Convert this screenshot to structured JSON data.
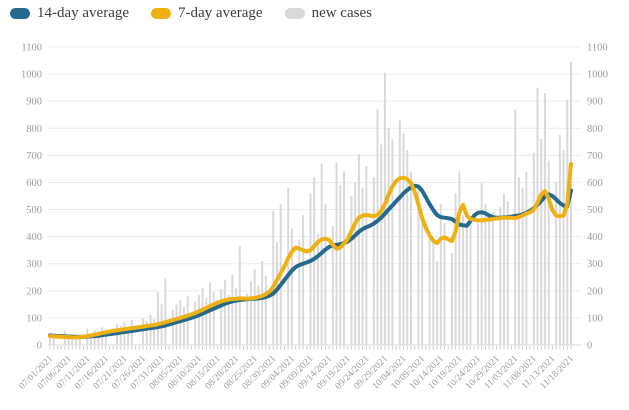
{
  "legend": {
    "items": [
      {
        "name": "avg14",
        "label": "14-day average",
        "color": "#26698e"
      },
      {
        "name": "avg7",
        "label": "7-day average",
        "color": "#eeb111"
      },
      {
        "name": "new_cases",
        "label": "new cases",
        "color": "#d9d9d9"
      }
    ]
  },
  "colors": {
    "bar": "#d9d9d9",
    "line_14day": "#26698e",
    "line_7day": "#eeb111",
    "gridline": "#ececec",
    "baseline": "#d8d8d8",
    "axis_text": "#9c9c9c",
    "day_tick": "#cccccc"
  },
  "chart_data": {
    "type": "bar+line combo, dual y-axis",
    "title": "",
    "xlabel": "",
    "ylabel": "",
    "ylim": [
      0,
      1100
    ],
    "y_ticks": [
      0,
      100,
      200,
      300,
      400,
      500,
      600,
      700,
      800,
      900,
      1000,
      1100
    ],
    "grid": "horizontal-only",
    "legend_position": "top-left",
    "dual_y_axis": true,
    "n_points": 141,
    "x_tick_every": 5,
    "x_tick_labels": [
      "07/01/2021",
      "07/06/2021",
      "07/11/2021",
      "07/16/2021",
      "07/21/2021",
      "07/26/2021",
      "07/31/2021",
      "08/05/2021",
      "08/10/2021",
      "08/15/2021",
      "08/20/2021",
      "08/25/2021",
      "08/30/2021",
      "09/04/2021",
      "09/09/2021",
      "09/14/2021",
      "09/19/2021",
      "09/24/2021",
      "09/29/2021",
      "10/04/2021",
      "10/09/2021",
      "10/14/2021",
      "10/19/2021",
      "10/24/2021",
      "10/29/2021",
      "11/03/2021",
      "11/08/2021",
      "11/13/2021",
      "11/18/2021"
    ],
    "series": [
      {
        "name": "new cases",
        "type": "bar",
        "color": "#d9d9d9",
        "values": [
          45,
          38,
          0,
          0,
          52,
          40,
          35,
          30,
          28,
          0,
          60,
          42,
          55,
          48,
          65,
          58,
          0,
          0,
          78,
          70,
          85,
          62,
          92,
          0,
          0,
          98,
          88,
          112,
          95,
          195,
          150,
          245,
          0,
          130,
          150,
          165,
          140,
          180,
          0,
          160,
          185,
          210,
          175,
          230,
          195,
          0,
          205,
          240,
          185,
          260,
          210,
          365,
          0,
          190,
          235,
          280,
          220,
          310,
          255,
          0,
          495,
          380,
          520,
          0,
          580,
          430,
          0,
          390,
          480,
          0,
          560,
          620,
          410,
          670,
          520,
          0,
          440,
          675,
          590,
          640,
          0,
          550,
          600,
          705,
          580,
          660,
          0,
          620,
          870,
          740,
          1005,
          800,
          760,
          0,
          830,
          780,
          720,
          640,
          0,
          580,
          470,
          0,
          420,
          380,
          310,
          520,
          450,
          0,
          340,
          560,
          640,
          480,
          440,
          470,
          0,
          450,
          600,
          520,
          470,
          490,
          0,
          510,
          560,
          530,
          0,
          870,
          620,
          580,
          640,
          0,
          710,
          950,
          760,
          930,
          680,
          0,
          600,
          775,
          720,
          905,
          1045
        ]
      },
      {
        "name": "14-day average",
        "type": "line",
        "color": "#26698e",
        "values": [
          35,
          34,
          33,
          33,
          32,
          31,
          31,
          30,
          30,
          30,
          31,
          32,
          33,
          34,
          36,
          38,
          40,
          42,
          44,
          46,
          48,
          50,
          52,
          54,
          56,
          58,
          60,
          62,
          64,
          66,
          69,
          72,
          76,
          80,
          84,
          88,
          92,
          96,
          100,
          105,
          110,
          116,
          122,
          128,
          134,
          140,
          146,
          152,
          157,
          161,
          164,
          166,
          168,
          169,
          170,
          171,
          172,
          174,
          177,
          182,
          190,
          205,
          222,
          240,
          258,
          275,
          288,
          295,
          300,
          305,
          310,
          318,
          328,
          340,
          352,
          362,
          368,
          370,
          372,
          376,
          382,
          392,
          405,
          418,
          428,
          435,
          440,
          448,
          458,
          470,
          485,
          500,
          515,
          530,
          545,
          560,
          572,
          582,
          588,
          585,
          570,
          545,
          520,
          498,
          480,
          472,
          470,
          468,
          465,
          455,
          445,
          442,
          440,
          458,
          478,
          488,
          490,
          486,
          478,
          472,
          470,
          470,
          471,
          472,
          474,
          476,
          478,
          482,
          488,
          495,
          505,
          518,
          532,
          548,
          556,
          550,
          538,
          524,
          515,
          512,
          570
        ]
      },
      {
        "name": "7-day average",
        "type": "line",
        "color": "#eeb111",
        "values": [
          33,
          32,
          31,
          30,
          30,
          29,
          28,
          28,
          29,
          31,
          33,
          35,
          38,
          41,
          44,
          47,
          50,
          52,
          54,
          56,
          58,
          60,
          62,
          64,
          66,
          68,
          70,
          72,
          74,
          77,
          80,
          84,
          88,
          92,
          96,
          100,
          104,
          108,
          113,
          118,
          124,
          130,
          137,
          144,
          150,
          156,
          161,
          165,
          168,
          170,
          171,
          172,
          172,
          171,
          172,
          174,
          177,
          181,
          188,
          198,
          215,
          240,
          265,
          290,
          320,
          345,
          360,
          355,
          350,
          345,
          350,
          365,
          380,
          390,
          392,
          388,
          370,
          355,
          360,
          375,
          390,
          420,
          450,
          470,
          478,
          480,
          478,
          475,
          480,
          495,
          520,
          555,
          585,
          605,
          615,
          618,
          612,
          598,
          565,
          520,
          470,
          432,
          405,
          385,
          376,
          392,
          398,
          390,
          383,
          420,
          490,
          518,
          478,
          465,
          462,
          460,
          460,
          462,
          463,
          465,
          467,
          468,
          470,
          470,
          470,
          468,
          472,
          478,
          485,
          490,
          500,
          525,
          555,
          568,
          540,
          498,
          478,
          475,
          478,
          520,
          668
        ]
      }
    ]
  }
}
